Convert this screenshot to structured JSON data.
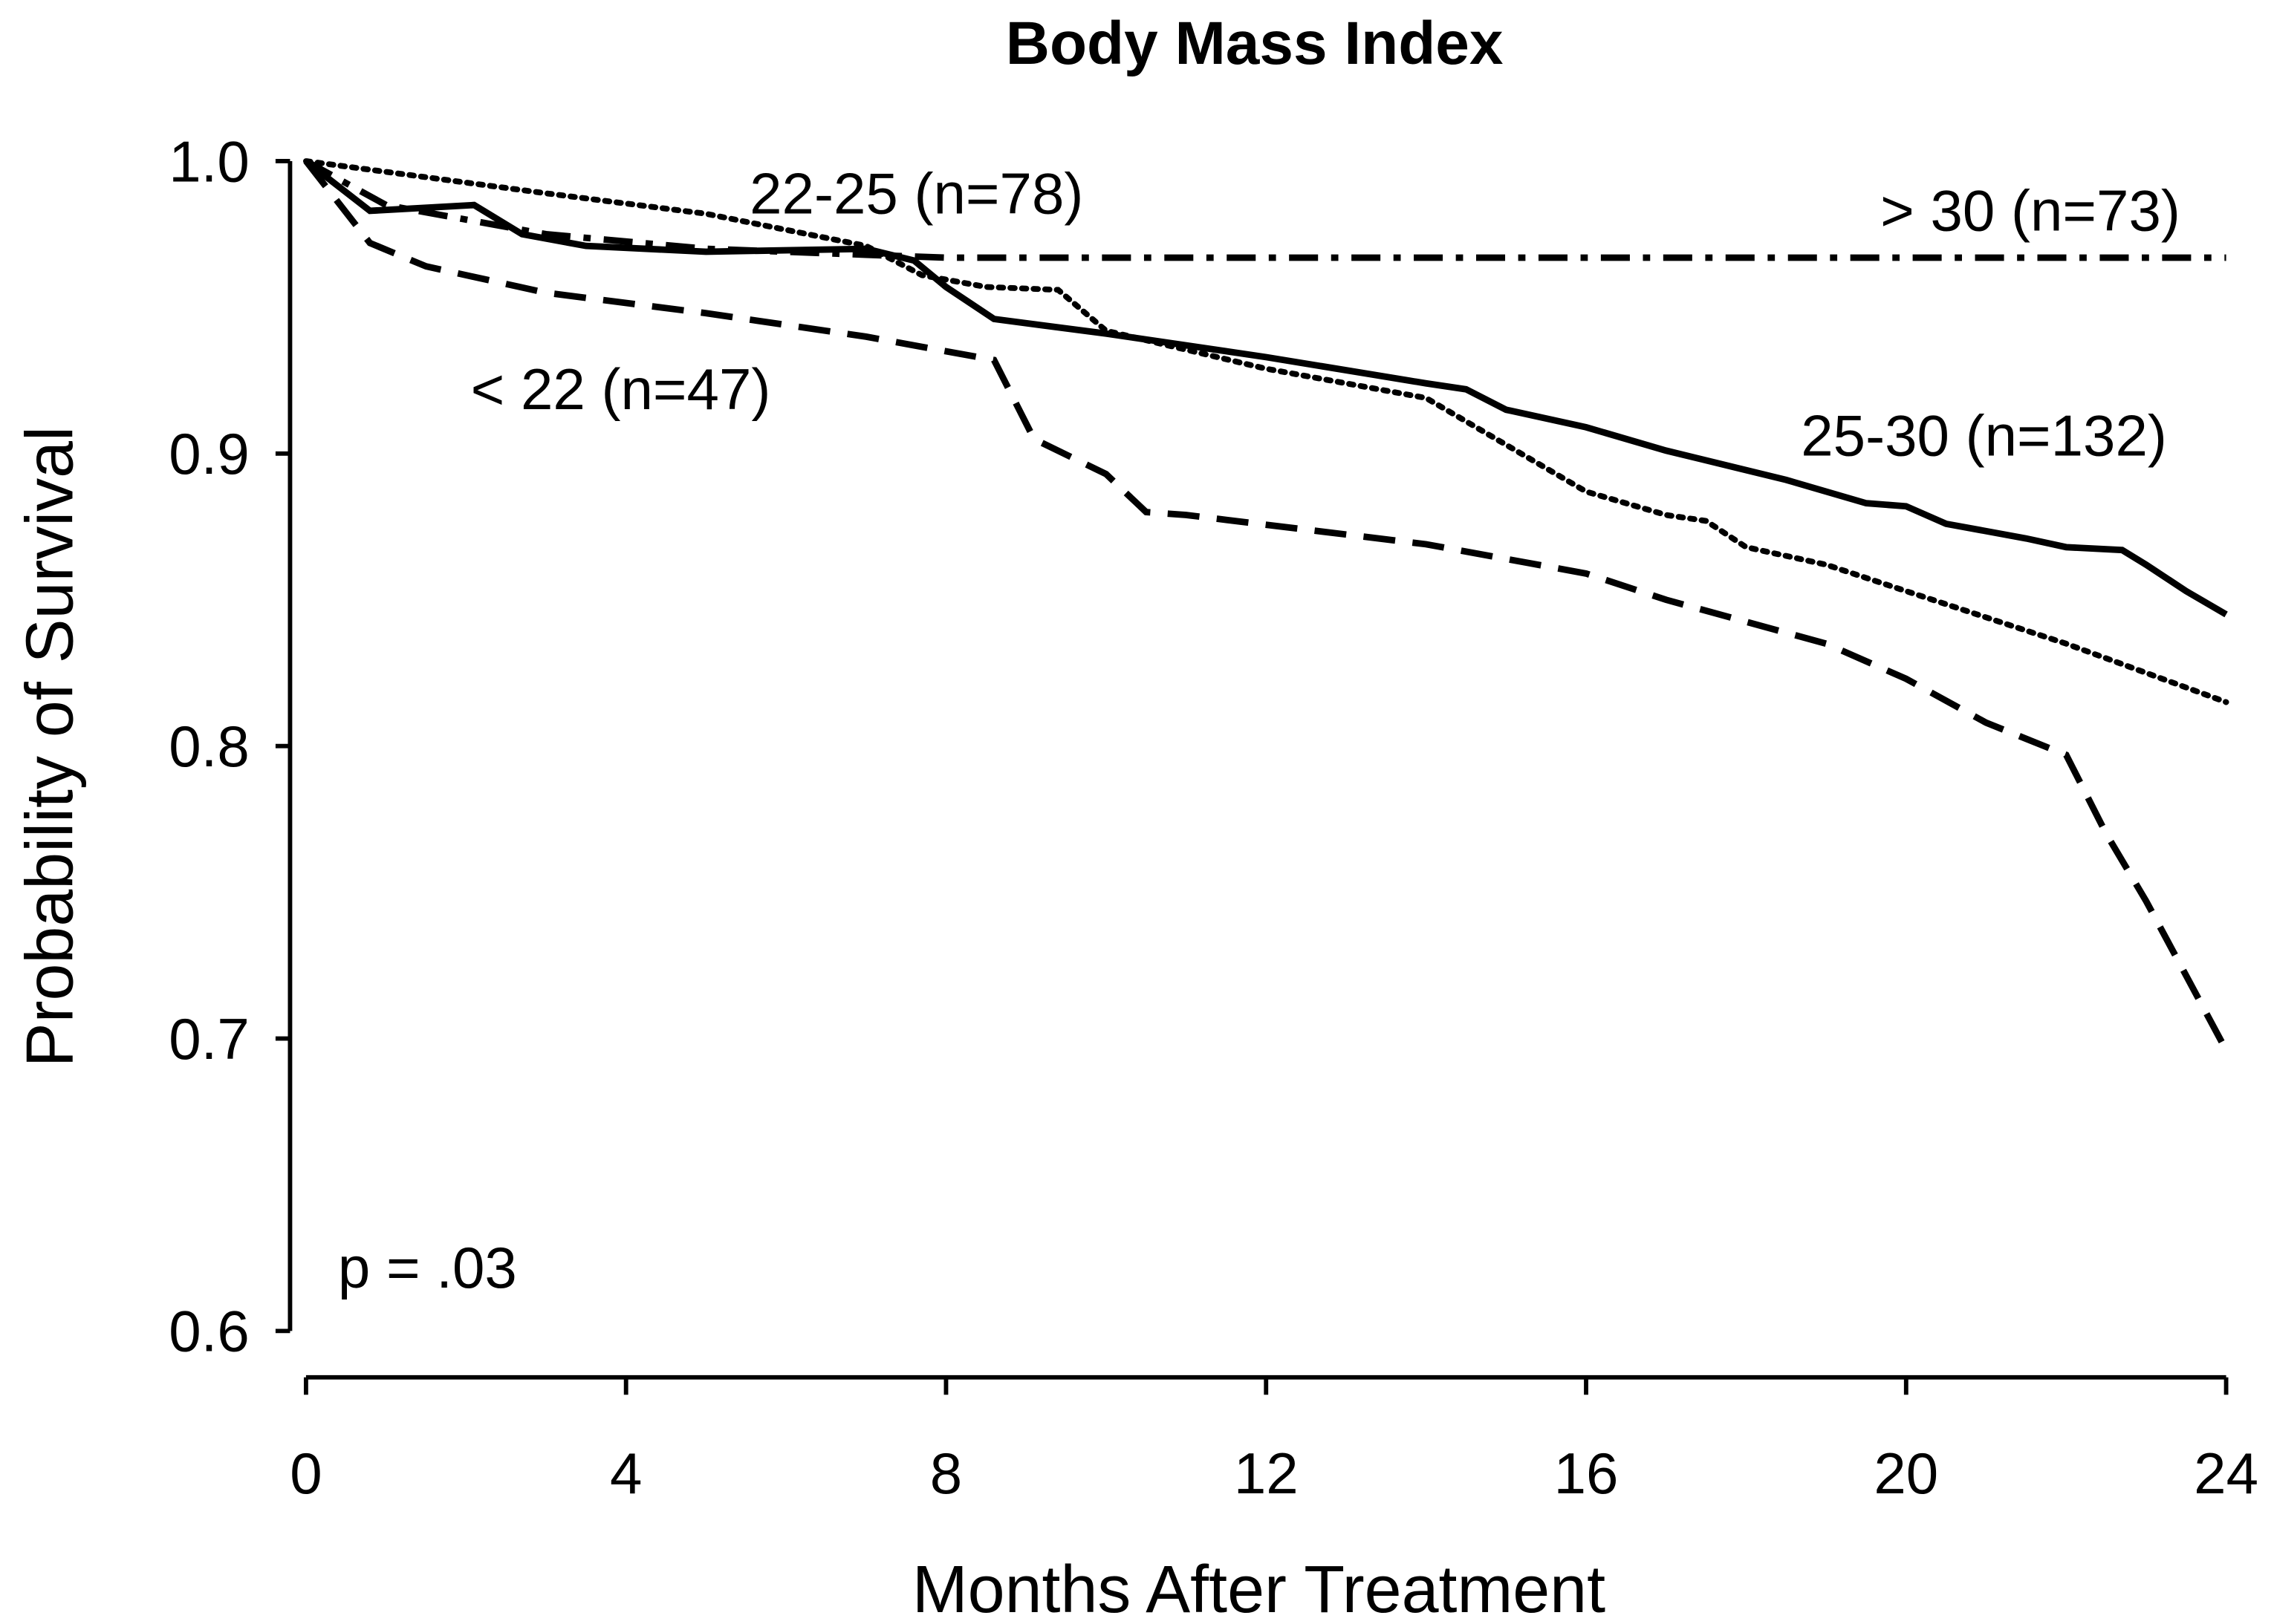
{
  "chart_data": {
    "type": "line",
    "title": "Body Mass Index",
    "xlabel": "Months After Treatment",
    "ylabel": "Probability of Survival",
    "annotation": "p = .03",
    "xlim": [
      0,
      24
    ],
    "xticks": [
      0,
      4,
      8,
      12,
      16,
      20,
      24
    ],
    "ylim": [
      0.6,
      1.0
    ],
    "yticks": [
      0.6,
      0.7,
      0.8,
      0.9,
      {
        "value": 1.0,
        "label": "1.0"
      }
    ],
    "grid": false,
    "series": [
      {
        "name": "< 22 (n=47)",
        "color": "#000000",
        "line_style": "dashed",
        "x": [
          0,
          0.8,
          1.5,
          3,
          5,
          7,
          8.6,
          9.1,
          10,
          10.5,
          11,
          14,
          16,
          17,
          19,
          20,
          21,
          22,
          22.5,
          23,
          24
        ],
        "values": [
          1.0,
          0.972,
          0.964,
          0.955,
          0.948,
          0.94,
          0.932,
          0.905,
          0.893,
          0.88,
          0.879,
          0.869,
          0.859,
          0.85,
          0.835,
          0.823,
          0.808,
          0.797,
          0.77,
          0.747,
          0.696
        ]
      },
      {
        "name": "22-25 (n=78)",
        "color": "#000000",
        "line_style": "dotted",
        "x": [
          0,
          3,
          5,
          7,
          7.7,
          8.5,
          9.4,
          10,
          12,
          14,
          15,
          16,
          17,
          17.5,
          18,
          19,
          20,
          22,
          24
        ],
        "values": [
          1.0,
          0.989,
          0.982,
          0.971,
          0.961,
          0.957,
          0.956,
          0.942,
          0.929,
          0.919,
          0.903,
          0.887,
          0.879,
          0.877,
          0.868,
          0.862,
          0.853,
          0.835,
          0.815
        ]
      },
      {
        "name": "25-30 (n=132)",
        "color": "#000000",
        "line_style": "solid",
        "x": [
          0,
          0.8,
          2.1,
          2.7,
          3.5,
          5,
          7,
          7.6,
          8,
          8.6,
          10,
          12,
          14,
          14.5,
          15,
          16,
          17,
          18.5,
          19.5,
          20,
          20.5,
          21.5,
          22,
          22.7,
          23,
          23.5,
          24
        ],
        "values": [
          1.0,
          0.983,
          0.985,
          0.975,
          0.971,
          0.969,
          0.97,
          0.966,
          0.957,
          0.946,
          0.941,
          0.933,
          0.924,
          0.922,
          0.915,
          0.909,
          0.901,
          0.891,
          0.883,
          0.882,
          0.876,
          0.871,
          0.868,
          0.867,
          0.862,
          0.853,
          0.845
        ]
      },
      {
        "name": "> 30 (n=73)",
        "color": "#000000",
        "line_style": "dashdot",
        "x": [
          0,
          1,
          3,
          5,
          7,
          8,
          24
        ],
        "values": [
          1.0,
          0.985,
          0.975,
          0.97,
          0.968,
          0.967,
          0.967
        ]
      }
    ]
  }
}
